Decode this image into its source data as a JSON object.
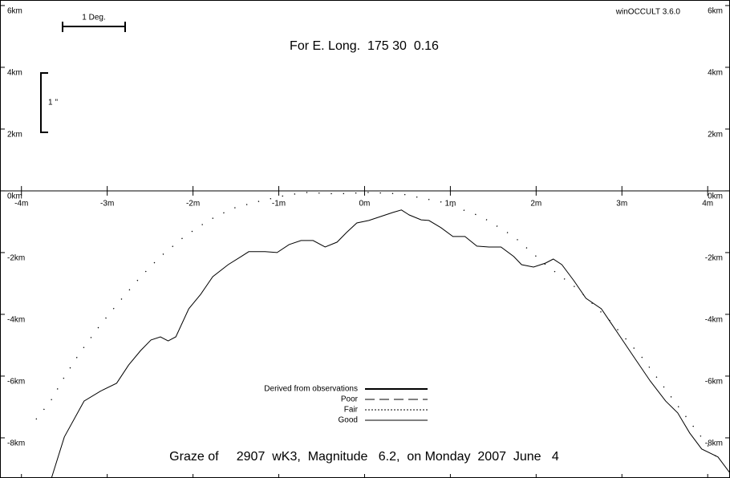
{
  "chart_data": {
    "type": "line",
    "title": "For E. Long.  175 30  0.16",
    "subtitle": "Graze of     2907  wK3,  Magnitude   6.2,  on Monday  2007  June   4",
    "software": "winOCCULT 3.6.0",
    "scale_bars": {
      "horizontal": "1 Deg.",
      "vertical": "1 ''"
    },
    "xlim": [
      -4.25,
      4.26
    ],
    "ylim": [
      -9.3,
      6.18
    ],
    "xticks": [
      {
        "value": -4,
        "label": "-4m"
      },
      {
        "value": -3,
        "label": "-3m"
      },
      {
        "value": -2,
        "label": "-2m"
      },
      {
        "value": -1,
        "label": "-1m"
      },
      {
        "value": 0,
        "label": "0m"
      },
      {
        "value": 1,
        "label": "1m"
      },
      {
        "value": 2,
        "label": "2m"
      },
      {
        "value": 3,
        "label": "3m"
      },
      {
        "value": 4,
        "label": "4m"
      }
    ],
    "yticks": [
      {
        "value": 6,
        "label": "6km"
      },
      {
        "value": 4,
        "label": "4km"
      },
      {
        "value": 2,
        "label": "2km"
      },
      {
        "value": 0,
        "label": "0km"
      },
      {
        "value": -2,
        "label": "-2km"
      },
      {
        "value": -4,
        "label": "-4km"
      },
      {
        "value": -6,
        "label": "-6km"
      },
      {
        "value": -8,
        "label": "-8km"
      }
    ],
    "series": [
      {
        "name": "Derived from observations",
        "style": "thick",
        "color": "#000000",
        "x": [],
        "values": []
      },
      {
        "name": "Poor",
        "style": "dashed",
        "color": "#000000",
        "x": [],
        "values": []
      },
      {
        "name": "Fair",
        "style": "dotted",
        "color": "#000000",
        "x": [
          -3.83,
          -3.66,
          -3.5,
          -3.32,
          -3.08,
          -2.85,
          -2.61,
          -2.38,
          -2.1,
          -1.82,
          -1.54,
          -1.26,
          -0.98,
          -0.7,
          -0.32,
          0.05,
          0.43,
          0.89,
          1.36,
          1.74,
          2.11,
          2.48,
          2.86,
          3.23,
          3.61,
          3.89,
          4.17
        ],
        "values": [
          -7.4,
          -6.81,
          -6.03,
          -5.25,
          -4.34,
          -3.56,
          -2.78,
          -2.13,
          -1.48,
          -0.96,
          -0.57,
          -0.36,
          -0.18,
          -0.05,
          -0.1,
          -0.05,
          -0.1,
          -0.36,
          -0.83,
          -1.48,
          -2.39,
          -3.17,
          -4.21,
          -5.38,
          -6.81,
          -7.84,
          -8.88
        ]
      },
      {
        "name": "Good",
        "style": "solid",
        "color": "#000000",
        "x": [
          -3.65,
          -3.5,
          -3.27,
          -3.08,
          -2.89,
          -2.75,
          -2.61,
          -2.49,
          -2.38,
          -2.29,
          -2.2,
          -2.05,
          -1.91,
          -1.77,
          -1.59,
          -1.44,
          -1.35,
          -1.16,
          -1.02,
          -0.88,
          -0.74,
          -0.6,
          -0.46,
          -0.32,
          -0.21,
          -0.09,
          0.05,
          0.19,
          0.33,
          0.43,
          0.52,
          0.66,
          0.75,
          0.89,
          1.03,
          1.17,
          1.31,
          1.45,
          1.59,
          1.74,
          1.83,
          1.97,
          2.11,
          2.2,
          2.3,
          2.44,
          2.58,
          2.76,
          2.95,
          3.14,
          3.33,
          3.51,
          3.65,
          3.79,
          3.93,
          4.12,
          4.26
        ],
        "values": [
          -9.3,
          -7.97,
          -6.81,
          -6.49,
          -6.23,
          -5.64,
          -5.17,
          -4.83,
          -4.73,
          -4.86,
          -4.73,
          -3.82,
          -3.35,
          -2.78,
          -2.39,
          -2.13,
          -1.97,
          -1.97,
          -2.0,
          -1.74,
          -1.61,
          -1.61,
          -1.82,
          -1.66,
          -1.35,
          -1.04,
          -0.96,
          -0.83,
          -0.7,
          -0.62,
          -0.78,
          -0.94,
          -0.96,
          -1.19,
          -1.48,
          -1.48,
          -1.79,
          -1.82,
          -1.82,
          -2.13,
          -2.39,
          -2.47,
          -2.34,
          -2.21,
          -2.39,
          -2.91,
          -3.48,
          -3.82,
          -4.6,
          -5.38,
          -6.16,
          -6.81,
          -7.19,
          -7.84,
          -8.36,
          -8.62,
          -9.14
        ]
      }
    ]
  }
}
